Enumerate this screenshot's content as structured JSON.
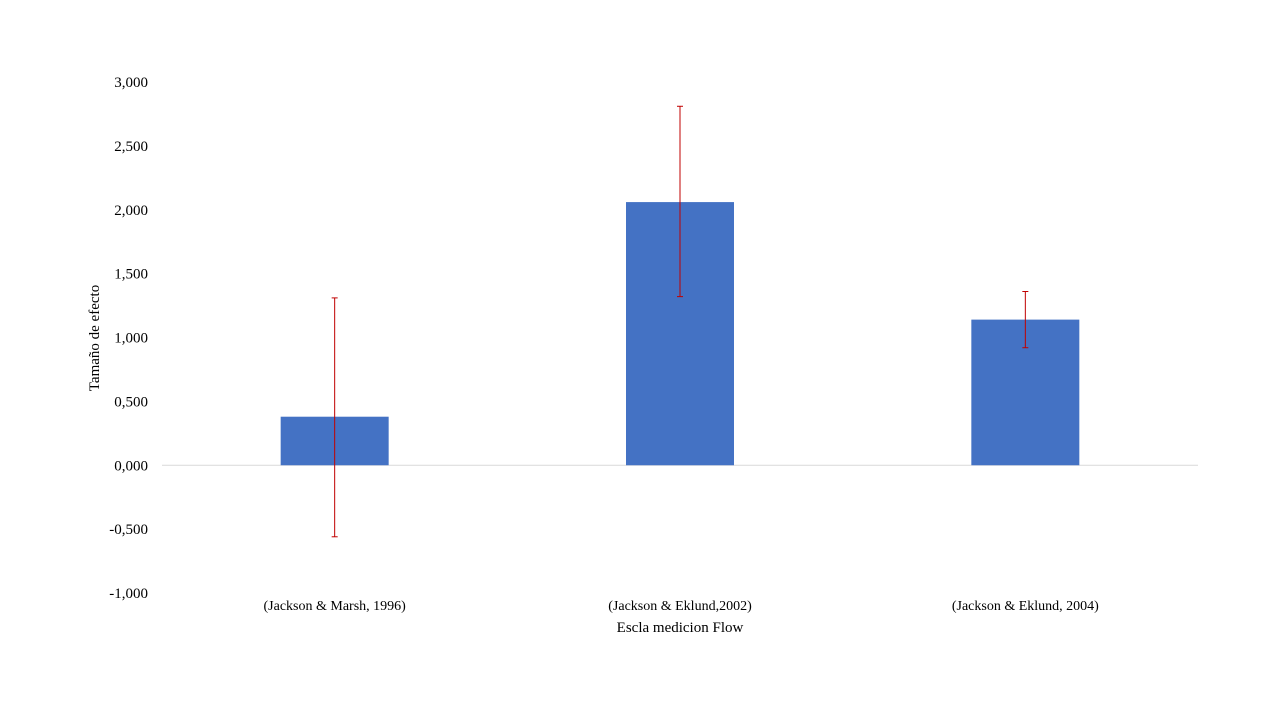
{
  "chart_data": {
    "type": "bar",
    "categories": [
      "(Jackson & Marsh, 1996)",
      "(Jackson & Eklund,2002)",
      "(Jackson & Eklund, 2004)"
    ],
    "values": [
      0.38,
      2.06,
      1.14
    ],
    "error_low": [
      -0.56,
      1.32,
      0.92
    ],
    "error_high": [
      1.31,
      2.81,
      1.36
    ],
    "ylim": [
      -1.0,
      3.0
    ],
    "yticks": [
      -1.0,
      -0.5,
      0.0,
      0.5,
      1.0,
      1.5,
      2.0,
      2.5,
      3.0
    ],
    "ytick_labels": [
      "-1,000",
      "-0,500",
      "0,000",
      "0,500",
      "1,000",
      "1,500",
      "2,000",
      "2,500",
      "3,000"
    ],
    "xlabel": "Escla medicion  Flow",
    "ylabel": "Tamaño  de efecto",
    "title": "",
    "bar_color": "#4472c4",
    "error_color": "#c00000",
    "zero_line_color": "#d9d9d9",
    "grid": false,
    "legend": "none"
  }
}
